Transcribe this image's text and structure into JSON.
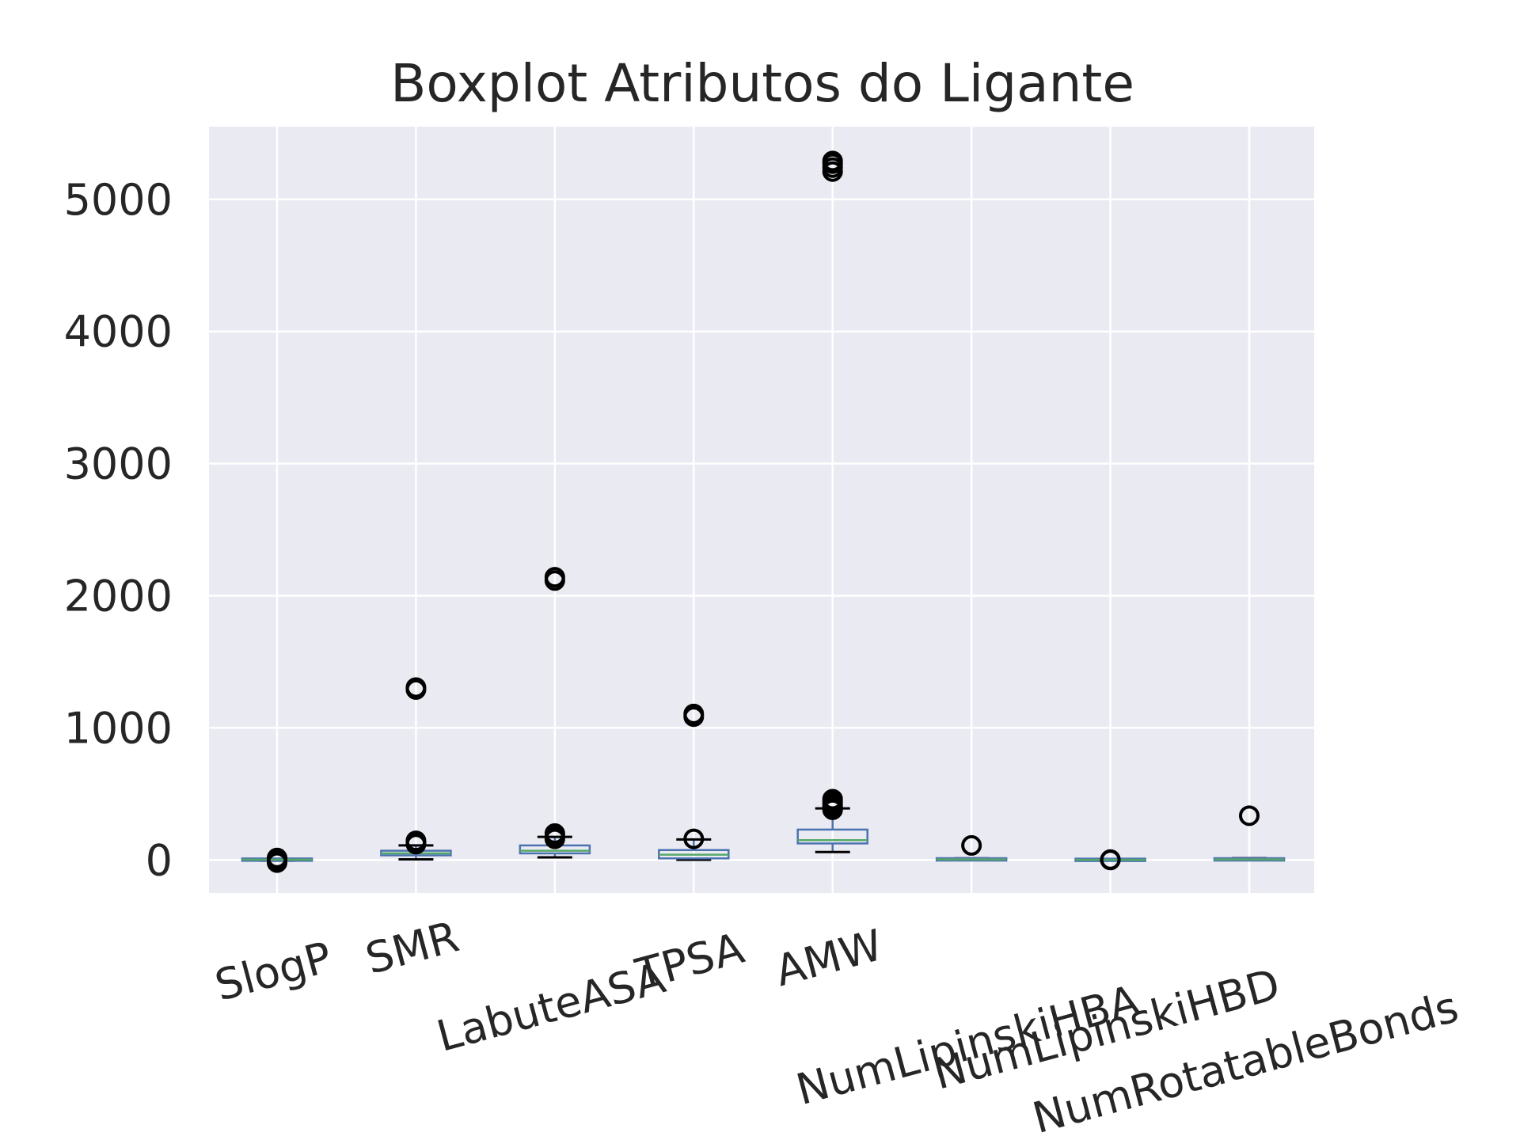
{
  "chart_data": {
    "type": "box",
    "title": "Boxplot Atributos do Ligante",
    "xlabel": "",
    "ylabel": "",
    "ylim": [
      -250,
      5550
    ],
    "yticks": [
      0,
      1000,
      2000,
      3000,
      4000,
      5000
    ],
    "grid": true,
    "background": "#eaeaf2",
    "colors": {
      "box": "#4c72b0",
      "median": "#55a868",
      "whisker": "#4c72b0",
      "cap": "#000000",
      "flier": "#000000",
      "grid": "#ffffff"
    },
    "categories": [
      "SlogP",
      "SMR",
      "LabuteASA",
      "TPSA",
      "AMW",
      "NumLipinskiHBA",
      "NumLipinskiHBD",
      "NumRotatableBonds"
    ],
    "boxes": [
      {
        "label": "SlogP",
        "whislo": -5,
        "q1": 1,
        "med": 2.5,
        "q3": 4,
        "whishi": 8,
        "fliers": [
          -20,
          -10,
          12,
          15
        ]
      },
      {
        "label": "SMR",
        "whislo": 5,
        "q1": 35,
        "med": 50,
        "q3": 70,
        "whishi": 110,
        "fliers": [
          120,
          130,
          145,
          1290,
          1305
        ]
      },
      {
        "label": "LabuteASA",
        "whislo": 20,
        "q1": 50,
        "med": 70,
        "q3": 110,
        "whishi": 175,
        "fliers": [
          160,
          180,
          200,
          2115,
          2140
        ]
      },
      {
        "label": "TPSA",
        "whislo": 2,
        "q1": 12,
        "med": 40,
        "q3": 75,
        "whishi": 155,
        "fliers": [
          160,
          1085,
          1105
        ]
      },
      {
        "label": "AMW",
        "whislo": 60,
        "q1": 125,
        "med": 150,
        "q3": 230,
        "whishi": 390,
        "fliers": [
          380,
          400,
          420,
          440,
          460,
          5210,
          5240,
          5270,
          5290
        ]
      },
      {
        "label": "NumLipinskiHBA",
        "whislo": 0,
        "q1": 2,
        "med": 4,
        "q3": 7,
        "whishi": 12,
        "fliers": [
          110
        ]
      },
      {
        "label": "NumLipinskiHBD",
        "whislo": 0,
        "q1": 0,
        "med": 1,
        "q3": 2,
        "whishi": 5,
        "fliers": [
          0,
          3
        ]
      },
      {
        "label": "NumRotatableBonds",
        "whislo": 0,
        "q1": 2,
        "med": 4,
        "q3": 7,
        "whishi": 14,
        "fliers": [
          335
        ]
      }
    ]
  }
}
